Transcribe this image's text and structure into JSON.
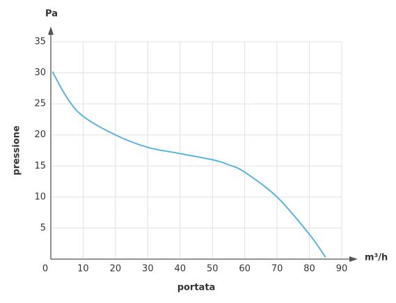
{
  "chart_data": {
    "type": "line",
    "y_unit": "Pa",
    "x_unit": "m³/h",
    "ylabel": "pressione",
    "xlabel": "portata",
    "xlim": [
      0,
      90
    ],
    "ylim": [
      0,
      35
    ],
    "xticks": [
      0,
      10,
      20,
      30,
      40,
      50,
      60,
      70,
      80,
      90
    ],
    "yticks": [
      5,
      10,
      15,
      20,
      25,
      30,
      35
    ],
    "grid": true,
    "series": [
      {
        "color": "#5ab4dc",
        "x": [
          0.5,
          5,
          10,
          20,
          30,
          40,
          50,
          55,
          60,
          70,
          80,
          85
        ],
        "values": [
          30.2,
          26,
          23,
          20,
          18,
          17,
          16,
          15.2,
          14,
          10,
          4,
          0.3
        ]
      }
    ]
  }
}
